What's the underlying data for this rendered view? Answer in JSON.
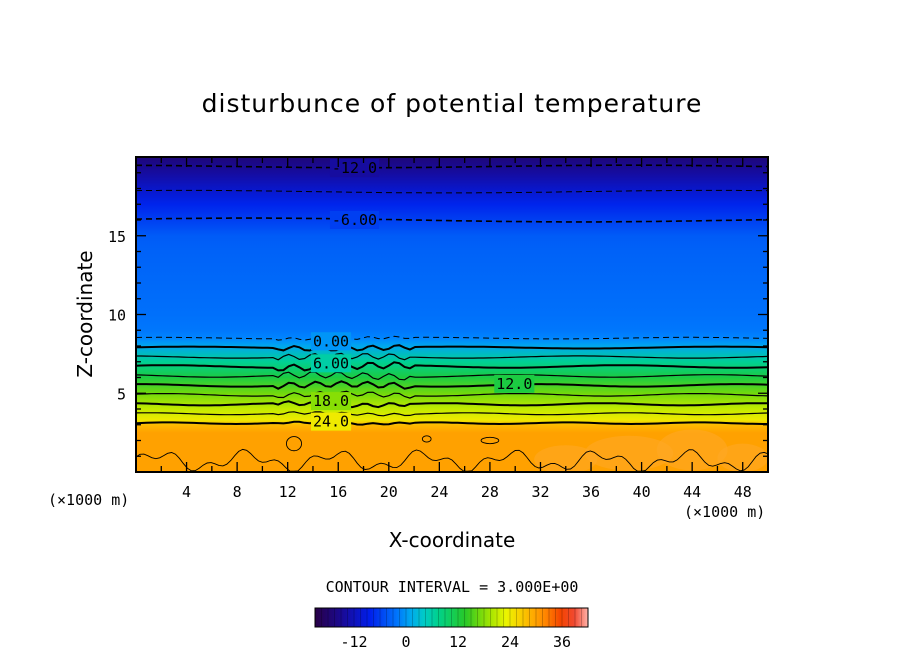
{
  "chart_data": {
    "type": "heatmap",
    "title": "disturbunce of potential temperature",
    "xlabel": "X-coordinate",
    "ylabel": "Z-coordinate",
    "x_unit": "(×1000 m)",
    "y_unit": "(×1000 m)",
    "xlim": [
      0,
      50
    ],
    "ylim": [
      0,
      20
    ],
    "x_ticks": [
      4,
      8,
      12,
      16,
      20,
      24,
      28,
      32,
      36,
      40,
      44,
      48
    ],
    "y_ticks": [
      5,
      10,
      15
    ],
    "contour_interval_text": "CONTOUR INTERVAL = 3.000E+00",
    "colorbar": {
      "min": -21,
      "max": 42,
      "ticks": [
        -12,
        0,
        12,
        24,
        36
      ]
    },
    "vertical_profile": {
      "z": [
        0,
        2.5,
        3.0,
        3.3,
        4.0,
        5.0,
        6.0,
        7.0,
        8.0,
        8.5,
        9.0,
        10,
        12,
        14,
        15,
        16,
        17,
        18,
        19,
        20
      ],
      "value": [
        30,
        30,
        28,
        24,
        21,
        17,
        12,
        7,
        1,
        -1,
        -2,
        -2.5,
        -3,
        -3.5,
        -4,
        -6,
        -8,
        -11,
        -14,
        -17
      ]
    },
    "contour_labels": [
      {
        "text": "-12.0",
        "x": 15.5,
        "y": 19.3
      },
      {
        "text": "-6.00",
        "x": 15.5,
        "y": 16.0
      },
      {
        "text": "0.00",
        "x": 14.0,
        "y": 8.3
      },
      {
        "text": "6.00",
        "x": 14.0,
        "y": 6.9
      },
      {
        "text": "12.0",
        "x": 28.5,
        "y": 5.6
      },
      {
        "text": "18.0",
        "x": 14.0,
        "y": 4.5
      },
      {
        "text": "24.0",
        "x": 14.0,
        "y": 3.2
      }
    ]
  }
}
